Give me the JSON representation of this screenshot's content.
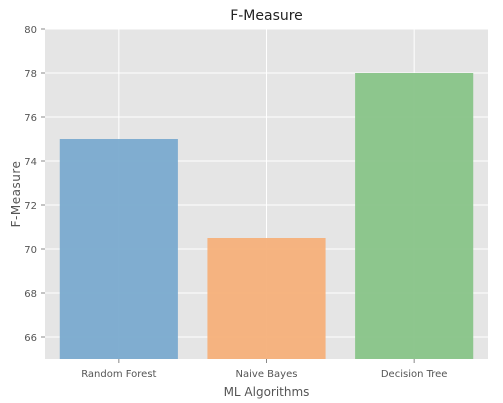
{
  "chart_data": {
    "type": "bar",
    "title": "F-Measure",
    "xlabel": "ML Algorithms",
    "ylabel": "F-Measure",
    "categories": [
      "Random Forest",
      "Naive Bayes",
      "Decision Tree"
    ],
    "values": [
      75.0,
      70.5,
      78.0
    ],
    "colors": [
      "#7aaacf",
      "#f5b07a",
      "#88c488"
    ],
    "ylim": [
      65,
      80
    ],
    "yticks": [
      "66",
      "68",
      "70",
      "72",
      "74",
      "76",
      "78",
      "80"
    ],
    "grid": true,
    "background": "#e5e5e5"
  }
}
